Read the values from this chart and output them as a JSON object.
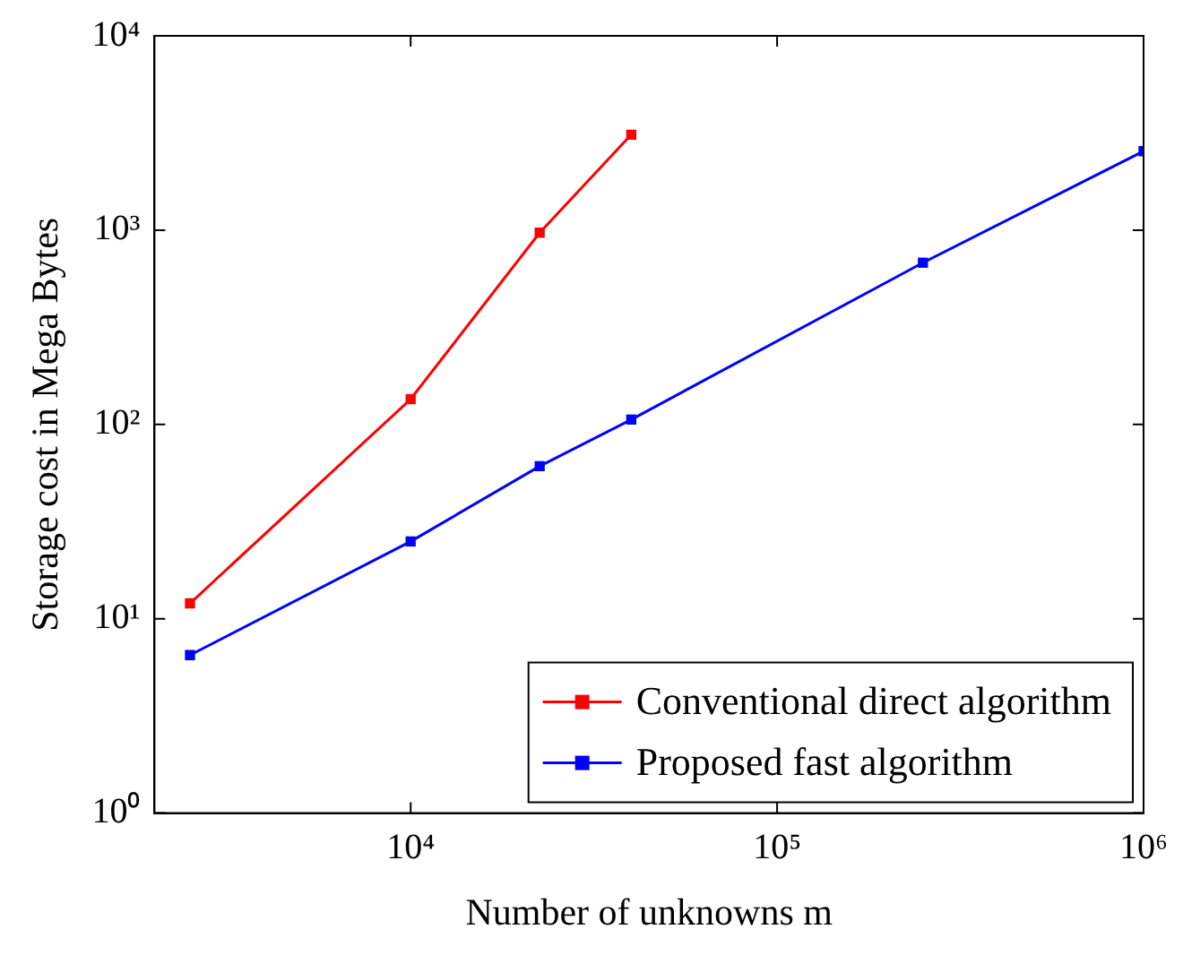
{
  "chart_data": {
    "type": "line",
    "xlabel": "Number of unknowns m",
    "ylabel": "Storage cost in Mega Bytes",
    "log": "xy",
    "xlim": [
      2000,
      1000000
    ],
    "ylim": [
      1,
      10000
    ],
    "xticks": [
      {
        "value": 10000,
        "label": "10⁴"
      },
      {
        "value": 100000,
        "label": "10⁵"
      },
      {
        "value": 1000000,
        "label": "10⁶"
      }
    ],
    "yticks": [
      {
        "value": 1,
        "label": "10⁰"
      },
      {
        "value": 10,
        "label": "10¹"
      },
      {
        "value": 100,
        "label": "10²"
      },
      {
        "value": 1000,
        "label": "10³"
      },
      {
        "value": 10000,
        "label": "10⁴"
      }
    ],
    "grid": false,
    "legend": "bottom right",
    "marker": "square",
    "line_style": "solid",
    "series": [
      {
        "name": "Conventional direct algorithm",
        "color": "#ff0000",
        "x": [
          2500,
          10000,
          22500,
          40000
        ],
        "values": [
          12,
          135,
          970,
          3100
        ]
      },
      {
        "name": "Proposed fast algorithm",
        "color": "#0000ff",
        "x": [
          2500,
          10000,
          22500,
          40000,
          250000,
          1000000
        ],
        "values": [
          6.5,
          25,
          61,
          106,
          680,
          2550
        ]
      }
    ]
  }
}
